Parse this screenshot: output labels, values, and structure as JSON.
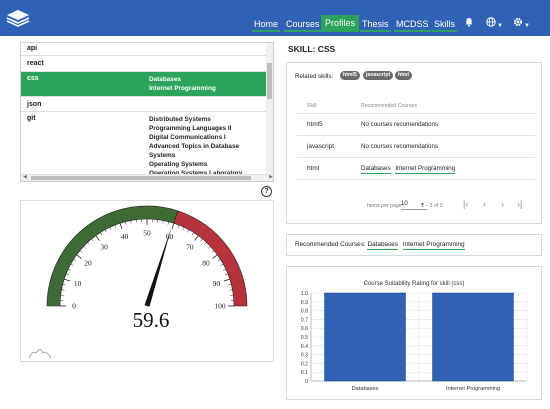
{
  "nav": {
    "logo_icon": "stacked-layers-icon",
    "items": [
      {
        "label": "Home",
        "active": false
      },
      {
        "label": "Courses",
        "active": false
      },
      {
        "label": "Profiles",
        "active": true
      },
      {
        "label": "Thesis",
        "active": false
      },
      {
        "label": "MCDSS",
        "active": false
      },
      {
        "label": "Skills",
        "active": false
      }
    ],
    "icons": [
      "bell-icon",
      "globe-icon",
      "settings-icon"
    ],
    "colors": {
      "bar": "#2f62b5",
      "accent": "#2ca35a"
    }
  },
  "skills_list": {
    "rows": [
      {
        "skill": "api",
        "courses": []
      },
      {
        "skill": "react",
        "courses": []
      },
      {
        "skill": "css",
        "courses": [
          "Databases",
          "Internet Programming"
        ]
      },
      {
        "skill": "json",
        "courses": []
      },
      {
        "skill": "git",
        "courses": [
          "Distributed Systems",
          "Programming Languages II",
          "Digital Communications I",
          "Advanced Topics in Database",
          "Systems",
          "Operating Systems",
          "Operating Systems Laboratory"
        ]
      }
    ]
  },
  "gauge": {
    "value": 59.6,
    "value_text": "59.6",
    "min": 0,
    "max": 100,
    "ticks": [
      "0",
      "10",
      "20",
      "30",
      "40",
      "50",
      "60",
      "70",
      "80",
      "90",
      "100"
    ],
    "zones": {
      "low_color": "#3e6b35",
      "high_color": "#b8323c"
    },
    "threshold": 60
  },
  "detail": {
    "title": "SKILL: CSS",
    "related_label": "Related skills:",
    "related_chips": [
      "html5",
      "javascript",
      "html"
    ],
    "table": {
      "headers": [
        "Skill",
        "Recommended Courses"
      ],
      "rows": [
        {
          "skill": "html5",
          "text": "No courses recomendations",
          "links": []
        },
        {
          "skill": "javascript",
          "text": "No courses recomendations",
          "links": []
        },
        {
          "skill": "html",
          "text": "",
          "links": [
            "Databases",
            "Internet Programming"
          ]
        }
      ]
    },
    "pager": {
      "items_label": "Items per page:",
      "per_page": "10",
      "range": "1 – 3 of 3"
    },
    "recommended": {
      "label": "Recommended Courses:",
      "links": [
        "Databases",
        "Internet Programming"
      ]
    }
  },
  "chart_data": {
    "type": "bar",
    "title": "Course Suitability Rating for skill (css)",
    "categories": [
      "Databases",
      "Internet Programming"
    ],
    "values": [
      1.0,
      1.0
    ],
    "ylim": [
      0,
      1.0
    ],
    "yticks": [
      "0",
      "0.1",
      "0.2",
      "0.3",
      "0.4",
      "0.5",
      "0.6",
      "0.7",
      "0.8",
      "0.9",
      "1.0"
    ],
    "grid": true,
    "bar_color": "#2f62b5"
  }
}
